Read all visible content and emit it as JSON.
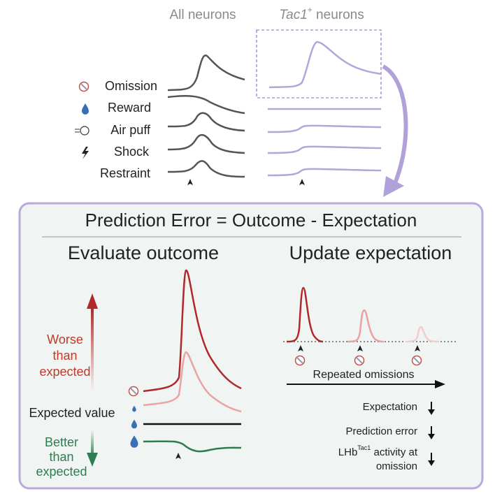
{
  "header": {
    "all_neurons": "All neurons",
    "tac1_gene": "Tac1",
    "tac1_sup": "+",
    "tac1_rest": " neurons"
  },
  "rows": [
    "Omission",
    "Reward",
    "Air puff",
    "Shock",
    "Restraint"
  ],
  "panel": {
    "title": "Prediction Error = Outcome - Expectation",
    "evaluate": {
      "title": "Evaluate outcome",
      "worse": [
        "Worse",
        "than",
        "expected"
      ],
      "expected_value": "Expected value",
      "better": [
        "Better",
        "than",
        "expected"
      ]
    },
    "update": {
      "title": "Update expectation",
      "axis_label": "Repeated omissions",
      "effects": {
        "expectation": "Expectation",
        "prediction_error": "Prediction error",
        "lhb": "LHb",
        "lhb_sup": "Tac1",
        "lhb_rest": " activity at",
        "lhb_line2": "omission"
      }
    }
  }
}
